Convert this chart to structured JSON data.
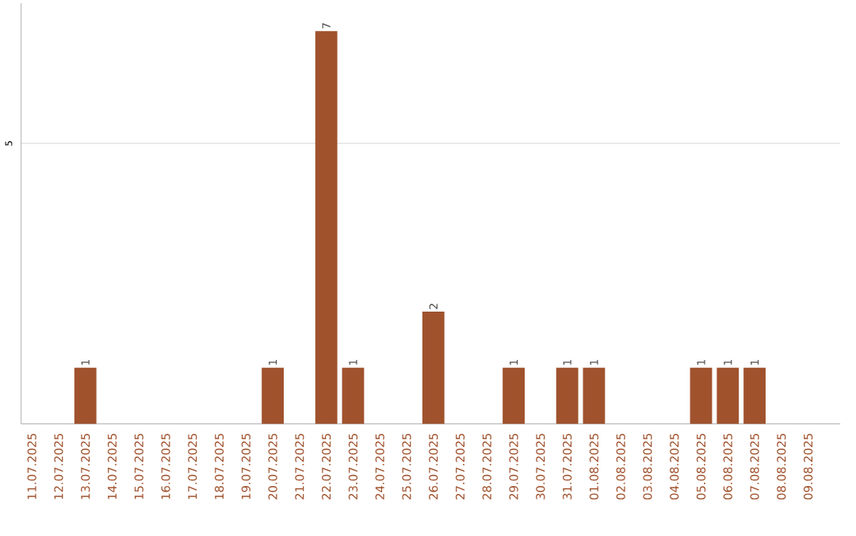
{
  "chart_data": {
    "type": "bar",
    "categories": [
      "11.07.2025",
      "12.07.2025",
      "13.07.2025",
      "14.07.2025",
      "15.07.2025",
      "16.07.2025",
      "17.07.2025",
      "18.07.2025",
      "19.07.2025",
      "20.07.2025",
      "21.07.2025",
      "22.07.2025",
      "23.07.2025",
      "24.07.2025",
      "25.07.2025",
      "26.07.2025",
      "27.07.2025",
      "28.07.2025",
      "29.07.2025",
      "30.07.2025",
      "31.07.2025",
      "01.08.2025",
      "02.08.2025",
      "03.08.2025",
      "04.08.2025",
      "05.08.2025",
      "06.08.2025",
      "07.08.2025",
      "08.08.2025",
      "09.08.2025"
    ],
    "values": [
      0,
      0,
      1,
      0,
      0,
      0,
      0,
      0,
      0,
      1,
      0,
      7,
      1,
      0,
      0,
      2,
      0,
      0,
      1,
      0,
      1,
      1,
      0,
      0,
      0,
      1,
      1,
      1,
      0,
      0
    ],
    "value_labels": [
      null,
      null,
      "1",
      null,
      null,
      null,
      null,
      null,
      null,
      "1",
      null,
      "7",
      "1",
      null,
      null,
      "2",
      null,
      null,
      "1",
      null,
      "1",
      "1",
      null,
      null,
      null,
      "1",
      "1",
      "1",
      null,
      null
    ],
    "color": "#a0522d",
    "ylim": [
      0,
      7.5
    ],
    "yticks": [
      5
    ],
    "grid": "y"
  }
}
